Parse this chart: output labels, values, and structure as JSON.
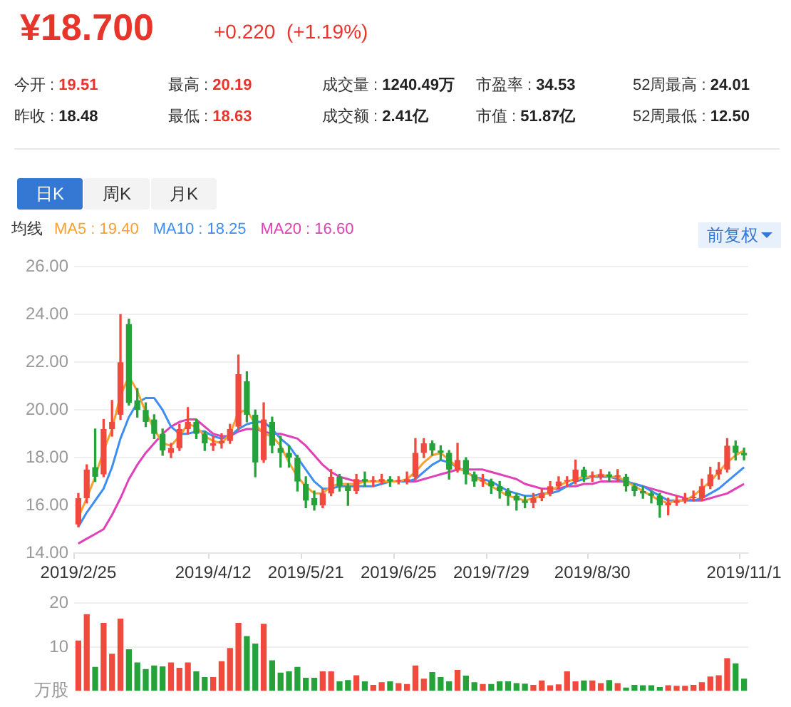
{
  "chart_data": [
    {
      "type": "other",
      "title": "¥18.700",
      "subtitle": "+0.220  (+1.19%)",
      "annotations": [
        "今开 : 19.51",
        "最高 : 20.19",
        "成交量 : 1240.49万",
        "市盈率 : 34.53",
        "52周最高 : 24.01",
        "昨收 : 18.48",
        "最低 : 18.63",
        "成交额 : 2.41亿",
        "市值 : 51.87亿",
        "52周最低 : 12.50"
      ]
    },
    {
      "type": "candlestick",
      "annotations": [
        "日K",
        "周K",
        "月K",
        "前复权"
      ],
      "legend": "top left",
      "legend_title": "均线",
      "grid": "y",
      "ylim": [
        14,
        26
      ],
      "yticks": [
        {
          "value": 14,
          "label": "14.00"
        },
        {
          "value": 16,
          "label": "16.00"
        },
        {
          "value": 18,
          "label": "18.00"
        },
        {
          "value": 20,
          "label": "20.00"
        },
        {
          "value": 22,
          "label": "22.00"
        },
        {
          "value": 24,
          "label": "24.00"
        },
        {
          "value": 26,
          "label": "26.00"
        }
      ],
      "categories": [
        "2019/2/25",
        null,
        null,
        null,
        null,
        null,
        null,
        null,
        null,
        null,
        null,
        null,
        null,
        null,
        null,
        null,
        "2019/4/12",
        null,
        null,
        null,
        null,
        null,
        null,
        null,
        null,
        null,
        null,
        "2019/5/21",
        null,
        null,
        null,
        null,
        null,
        null,
        null,
        null,
        null,
        null,
        "2019/6/25",
        null,
        null,
        null,
        null,
        null,
        null,
        null,
        null,
        null,
        null,
        "2019/7/29",
        null,
        null,
        null,
        null,
        null,
        null,
        null,
        null,
        null,
        null,
        null,
        "2019/8/30",
        null,
        null,
        null,
        null,
        null,
        null,
        null,
        null,
        null,
        null,
        null,
        null,
        null,
        null,
        null,
        null,
        null,
        "2019/11/1"
      ],
      "ohlc": [
        [
          15.2,
          16.5,
          15.1,
          16.3
        ],
        [
          16.3,
          17.7,
          16.1,
          17.5
        ],
        [
          17.6,
          19.2,
          17.0,
          17.2
        ],
        [
          17.3,
          19.6,
          17.2,
          19.2
        ],
        [
          19.2,
          20.4,
          18.9,
          19.5
        ],
        [
          19.8,
          24.0,
          19.6,
          22.0
        ],
        [
          23.6,
          23.8,
          20.2,
          20.3
        ],
        [
          20.4,
          20.9,
          19.7,
          20.0
        ],
        [
          20.0,
          20.3,
          19.3,
          19.5
        ],
        [
          19.6,
          19.8,
          18.8,
          19.0
        ],
        [
          19.0,
          19.2,
          18.1,
          18.3
        ],
        [
          18.2,
          18.6,
          18.0,
          18.4
        ],
        [
          18.4,
          19.4,
          18.3,
          19.2
        ],
        [
          19.2,
          20.1,
          19.0,
          19.5
        ],
        [
          19.5,
          19.6,
          18.8,
          19.0
        ],
        [
          19.0,
          19.1,
          18.3,
          18.6
        ],
        [
          18.5,
          18.9,
          18.3,
          18.6
        ],
        [
          18.6,
          19.0,
          18.4,
          18.7
        ],
        [
          18.7,
          19.4,
          18.6,
          19.2
        ],
        [
          19.3,
          22.3,
          19.2,
          21.5
        ],
        [
          21.2,
          21.6,
          19.5,
          19.8
        ],
        [
          19.8,
          20.0,
          17.2,
          17.8
        ],
        [
          17.9,
          20.3,
          17.8,
          19.6
        ],
        [
          19.5,
          19.7,
          18.2,
          18.5
        ],
        [
          18.4,
          18.9,
          17.6,
          18.2
        ],
        [
          18.2,
          18.5,
          17.6,
          18.0
        ],
        [
          18.0,
          18.1,
          16.6,
          17.0
        ],
        [
          16.9,
          17.2,
          15.9,
          16.2
        ],
        [
          16.3,
          16.6,
          15.8,
          16.0
        ],
        [
          16.0,
          16.7,
          15.9,
          16.5
        ],
        [
          16.5,
          17.5,
          16.4,
          17.2
        ],
        [
          17.2,
          17.3,
          16.6,
          16.8
        ],
        [
          16.8,
          16.9,
          16.0,
          16.6
        ],
        [
          16.6,
          17.3,
          16.5,
          17.1
        ],
        [
          17.1,
          17.4,
          16.8,
          17.0
        ],
        [
          17.0,
          17.2,
          16.8,
          17.0
        ],
        [
          17.0,
          17.3,
          16.9,
          17.1
        ],
        [
          17.1,
          17.2,
          16.8,
          17.0
        ],
        [
          17.0,
          17.2,
          16.9,
          17.0
        ],
        [
          17.0,
          17.4,
          16.9,
          17.1
        ],
        [
          17.2,
          18.8,
          17.1,
          18.2
        ],
        [
          18.2,
          18.8,
          18.0,
          18.6
        ],
        [
          18.6,
          18.7,
          18.1,
          18.3
        ],
        [
          18.3,
          18.5,
          17.9,
          18.2
        ],
        [
          18.2,
          18.3,
          17.1,
          17.5
        ],
        [
          17.5,
          18.6,
          17.4,
          17.9
        ],
        [
          17.9,
          18.0,
          16.9,
          17.3
        ],
        [
          17.3,
          17.4,
          16.8,
          17.0
        ],
        [
          17.0,
          17.3,
          16.8,
          17.0
        ],
        [
          17.0,
          17.1,
          16.5,
          16.8
        ],
        [
          16.8,
          17.0,
          16.3,
          16.6
        ],
        [
          16.6,
          16.7,
          16.0,
          16.4
        ],
        [
          16.4,
          16.5,
          15.8,
          16.2
        ],
        [
          16.2,
          16.4,
          15.9,
          16.1
        ],
        [
          16.1,
          16.5,
          15.9,
          16.3
        ],
        [
          16.3,
          16.7,
          16.2,
          16.5
        ],
        [
          16.5,
          17.0,
          16.4,
          16.8
        ],
        [
          16.8,
          17.2,
          16.7,
          17.0
        ],
        [
          17.0,
          17.2,
          16.8,
          17.0
        ],
        [
          17.0,
          17.9,
          16.9,
          17.5
        ],
        [
          17.5,
          17.6,
          17.0,
          17.2
        ],
        [
          17.2,
          17.4,
          17.0,
          17.2
        ],
        [
          17.2,
          17.5,
          17.1,
          17.3
        ],
        [
          17.3,
          17.4,
          17.0,
          17.2
        ],
        [
          17.2,
          17.5,
          17.0,
          17.2
        ],
        [
          17.2,
          17.3,
          16.6,
          16.8
        ],
        [
          16.8,
          16.9,
          16.4,
          16.6
        ],
        [
          16.6,
          16.8,
          16.3,
          16.5
        ],
        [
          16.5,
          16.6,
          16.1,
          16.4
        ],
        [
          16.4,
          16.5,
          15.5,
          16.0
        ],
        [
          16.0,
          16.3,
          15.6,
          16.1
        ],
        [
          16.1,
          16.4,
          16.0,
          16.2
        ],
        [
          16.2,
          16.5,
          16.1,
          16.3
        ],
        [
          16.3,
          16.6,
          16.2,
          16.3
        ],
        [
          16.3,
          17.1,
          16.2,
          16.8
        ],
        [
          16.8,
          17.6,
          16.7,
          17.3
        ],
        [
          17.3,
          17.8,
          17.1,
          17.5
        ],
        [
          17.5,
          18.8,
          17.4,
          18.5
        ],
        [
          18.5,
          18.7,
          17.9,
          18.2
        ],
        [
          18.2,
          18.4,
          17.9,
          18.1
        ]
      ],
      "series": [
        {
          "type": "line",
          "name": "MA5 : 19.40",
          "color": "#f9a032",
          "values": [
            15.5,
            16.3,
            17.2,
            18.3,
            19.2,
            20.6,
            21.4,
            20.8,
            19.9,
            19.2,
            18.6,
            18.5,
            18.9,
            19.4,
            19.3,
            18.9,
            18.7,
            18.6,
            19.0,
            19.9,
            20.0,
            19.4,
            19.0,
            18.9,
            18.5,
            17.8,
            17.2,
            16.8,
            16.5,
            16.5,
            16.8,
            16.9,
            16.9,
            16.9,
            17.0,
            17.0,
            17.0,
            17.0,
            17.0,
            17.1,
            17.4,
            17.8,
            18.1,
            18.2,
            17.9,
            17.6,
            17.4,
            17.2,
            17.0,
            16.8,
            16.6,
            16.4,
            16.3,
            16.2,
            16.3,
            16.4,
            16.6,
            16.8,
            17.0,
            17.1,
            17.2,
            17.2,
            17.3,
            17.2,
            17.2,
            17.0,
            16.8,
            16.6,
            16.4,
            16.2,
            16.1,
            16.2,
            16.2,
            16.4,
            16.7,
            17.0,
            17.4,
            17.8,
            18.1,
            18.3
          ]
        },
        {
          "type": "line",
          "name": "MA10 : 18.25",
          "color": "#3d8ef0",
          "values": [
            15.1,
            15.7,
            16.2,
            16.7,
            17.6,
            18.8,
            19.7,
            20.3,
            20.5,
            20.5,
            20.0,
            19.3,
            19.0,
            19.0,
            19.1,
            19.1,
            18.9,
            18.8,
            18.9,
            19.2,
            19.4,
            19.5,
            19.5,
            19.2,
            18.8,
            18.5,
            18.0,
            17.5,
            17.0,
            16.7,
            16.7,
            16.8,
            16.8,
            16.8,
            16.8,
            16.8,
            16.9,
            17.0,
            17.0,
            17.0,
            17.1,
            17.4,
            17.7,
            17.9,
            17.8,
            17.6,
            17.4,
            17.2,
            17.1,
            17.0,
            16.8,
            16.6,
            16.5,
            16.4,
            16.4,
            16.5,
            16.5,
            16.6,
            16.8,
            17.0,
            17.1,
            17.2,
            17.2,
            17.2,
            17.1,
            17.0,
            16.9,
            16.8,
            16.6,
            16.4,
            16.2,
            16.2,
            16.2,
            16.2,
            16.3,
            16.5,
            16.7,
            17.0,
            17.3,
            17.6
          ]
        },
        {
          "type": "line",
          "name": "MA20 : 16.60",
          "color": "#e040b8",
          "values": [
            14.4,
            14.6,
            14.8,
            15.0,
            15.6,
            16.3,
            17.1,
            17.7,
            18.2,
            18.6,
            19.0,
            19.3,
            19.5,
            19.6,
            19.6,
            19.3,
            19.0,
            18.9,
            18.9,
            19.1,
            19.2,
            19.2,
            19.1,
            19.0,
            19.0,
            18.9,
            18.8,
            18.5,
            18.1,
            17.7,
            17.4,
            17.2,
            17.1,
            17.0,
            17.0,
            17.0,
            17.0,
            17.0,
            17.0,
            17.0,
            17.0,
            17.1,
            17.2,
            17.3,
            17.4,
            17.5,
            17.5,
            17.5,
            17.5,
            17.4,
            17.3,
            17.2,
            17.1,
            16.9,
            16.8,
            16.7,
            16.7,
            16.7,
            16.8,
            16.8,
            16.9,
            16.9,
            17.0,
            17.0,
            17.0,
            17.0,
            16.9,
            16.8,
            16.7,
            16.6,
            16.5,
            16.4,
            16.3,
            16.2,
            16.2,
            16.3,
            16.4,
            16.5,
            16.7,
            16.9
          ]
        }
      ]
    },
    {
      "type": "bar",
      "ylabel": "万股",
      "grid": "y",
      "ylim": [
        0,
        20
      ],
      "yticks": [
        10,
        20
      ],
      "categories": [
        null,
        null,
        null,
        null,
        null,
        null,
        null,
        null,
        null,
        null,
        null,
        null,
        null,
        null,
        null,
        null,
        null,
        null,
        null,
        null,
        null,
        null,
        null,
        null,
        null,
        null,
        null,
        null,
        null,
        null,
        null,
        null,
        null,
        null,
        null,
        null,
        null,
        null,
        null,
        null,
        null,
        null,
        null,
        null,
        null,
        null,
        null,
        null,
        null,
        null,
        null,
        null,
        null,
        null,
        null,
        null,
        null,
        null,
        null,
        null,
        null,
        null,
        null,
        null,
        null,
        null,
        null,
        null,
        null,
        null,
        null,
        null,
        null,
        null,
        null,
        null,
        null,
        null,
        null,
        null
      ],
      "values": [
        11.5,
        17.5,
        5.5,
        15.5,
        8.5,
        16.5,
        9.5,
        6.5,
        5,
        5.8,
        5.6,
        6.5,
        5.3,
        6.5,
        4.5,
        3.2,
        3.2,
        6.8,
        9.8,
        15.5,
        12.5,
        10.8,
        15.3,
        7,
        4.2,
        4.5,
        5.5,
        3,
        3,
        4.5,
        4.5,
        2.2,
        2.5,
        3.6,
        2.2,
        1.4,
        2,
        2.2,
        1.8,
        1.6,
        5.8,
        2.8,
        4.3,
        3.2,
        2.2,
        4.8,
        3.5,
        2,
        1.6,
        1.6,
        2.2,
        2.2,
        1.8,
        1.7,
        1.4,
        2.4,
        1.3,
        1.5,
        4.5,
        2.2,
        2.4,
        2.4,
        1.8,
        2.5,
        1.8,
        0.8,
        1.4,
        1.3,
        1.3,
        0.9,
        1.3,
        1.2,
        1.2,
        1.4,
        2,
        3.3,
        3.6,
        7.5,
        6.3,
        2.8
      ],
      "colors": [
        "#f04a3e",
        "#f04a3e",
        "#25a23a",
        "#f04a3e",
        "#f04a3e",
        "#f04a3e",
        "#25a23a",
        "#25a23a",
        "#25a23a",
        "#25a23a",
        "#25a23a",
        "#f04a3e",
        "#f04a3e",
        "#f04a3e",
        "#25a23a",
        "#25a23a",
        "#f04a3e",
        "#f04a3e",
        "#f04a3e",
        "#f04a3e",
        "#25a23a",
        "#25a23a",
        "#f04a3e",
        "#25a23a",
        "#25a23a",
        "#25a23a",
        "#25a23a",
        "#25a23a",
        "#25a23a",
        "#f04a3e",
        "#f04a3e",
        "#25a23a",
        "#25a23a",
        "#f04a3e",
        "#25a23a",
        "#f04a3e",
        "#f04a3e",
        "#25a23a",
        "#f04a3e",
        "#f04a3e",
        "#f04a3e",
        "#f04a3e",
        "#25a23a",
        "#25a23a",
        "#25a23a",
        "#f04a3e",
        "#25a23a",
        "#25a23a",
        "#f04a3e",
        "#25a23a",
        "#25a23a",
        "#25a23a",
        "#25a23a",
        "#25a23a",
        "#f04a3e",
        "#f04a3e",
        "#f04a3e",
        "#f04a3e",
        "#f04a3e",
        "#f04a3e",
        "#25a23a",
        "#f04a3e",
        "#f04a3e",
        "#25a23a",
        "#f04a3e",
        "#25a23a",
        "#25a23a",
        "#25a23a",
        "#25a23a",
        "#25a23a",
        "#f04a3e",
        "#f04a3e",
        "#f04a3e",
        "#f04a3e",
        "#f04a3e",
        "#f04a3e",
        "#f04a3e",
        "#f04a3e",
        "#25a23a",
        "#25a23a"
      ]
    }
  ]
}
